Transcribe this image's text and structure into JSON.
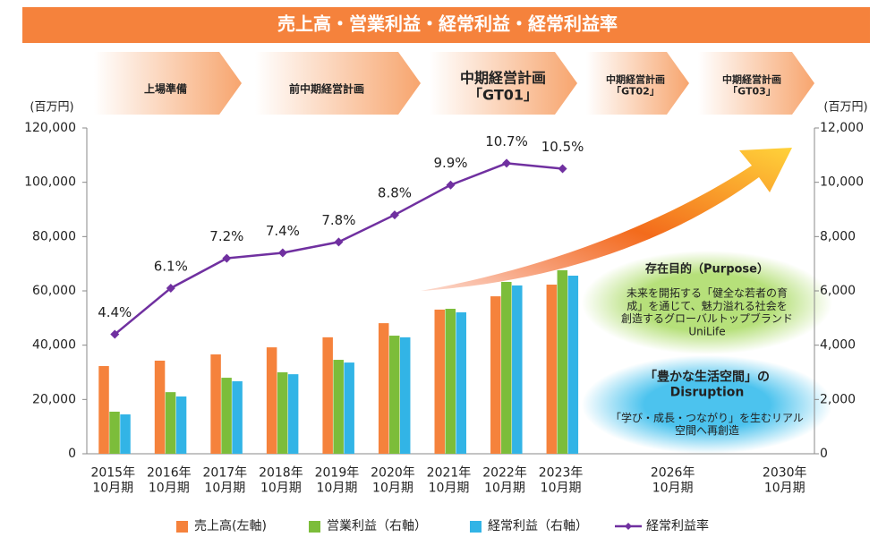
{
  "chart_data": {
    "type": "bar",
    "title": "売上高・営業利益・経常利益・経常利益率",
    "phases": [
      "上場準備",
      "前中期経営計画",
      "中期経営計画\n「GT01」",
      "中期経営計画\n「GT02」",
      "中期経営計画\n「GT03」"
    ],
    "y_label": "(百万円)",
    "y2_label": "(百万円)",
    "categories": [
      "2015年\n10月期",
      "2016年\n10月期",
      "2017年\n10月期",
      "2018年\n10月期",
      "2019年\n10月期",
      "2020年\n10月期",
      "2021年\n10月期",
      "2022年\n10月期",
      "2023年\n10月期",
      null,
      "2026年\n10月期",
      null,
      "2030年\n10月期"
    ],
    "ylim": [
      0,
      120000
    ],
    "yticks": [
      0,
      {
        "value": 20000,
        "label": "20,000"
      },
      {
        "value": 40000,
        "label": "40,000"
      },
      {
        "value": 60000,
        "label": "60,000"
      },
      {
        "value": 80000,
        "label": "80,000"
      },
      {
        "value": 100000,
        "label": "100,000"
      },
      {
        "value": 120000,
        "label": "120,000"
      }
    ],
    "y2lim": [
      0,
      12000
    ],
    "y2ticks": [
      0,
      {
        "value": 2000,
        "label": "2,000"
      },
      {
        "value": 4000,
        "label": "4,000"
      },
      {
        "value": 6000,
        "label": "6,000"
      },
      {
        "value": 8000,
        "label": "8,000"
      },
      {
        "value": 10000,
        "label": "10,000"
      },
      {
        "value": 12000,
        "label": "12,000"
      }
    ],
    "y3lim": [
      0,
      12
    ],
    "series": [
      {
        "name": "売上高(左軸)",
        "type": "bar",
        "color": "#f5823c",
        "axis": "y",
        "values": [
          32300,
          34300,
          36600,
          39200,
          42900,
          48100,
          53100,
          58000,
          62300,
          null,
          null,
          null,
          null
        ]
      },
      {
        "name": "営業利益（右軸）",
        "type": "bar",
        "color": "#7cbd3a",
        "axis": "y2",
        "values": [
          1550,
          2270,
          2800,
          3000,
          3460,
          4350,
          5340,
          6330,
          6760,
          null,
          null,
          null,
          null
        ]
      },
      {
        "name": "経常利益（右軸）",
        "type": "bar",
        "color": "#32b4e6",
        "axis": "y2",
        "values": [
          1450,
          2110,
          2670,
          2930,
          3360,
          4290,
          5210,
          6200,
          6560,
          null,
          null,
          null,
          null
        ]
      },
      {
        "name": "経常利益率",
        "type": "line",
        "color": "#7030a0",
        "axis": "y3",
        "values": [
          4.4,
          6.1,
          7.2,
          7.4,
          7.8,
          8.8,
          9.9,
          10.7,
          10.5,
          null,
          null,
          null,
          null
        ],
        "value_labels": [
          "4.4%",
          "6.1%",
          "7.2%",
          "7.4%",
          "7.8%",
          "8.8%",
          "9.9%",
          "10.7%",
          "10.5%",
          null,
          null,
          null,
          null
        ]
      }
    ],
    "annotations": [
      {
        "title": "存在目的（Purpose）",
        "text": "未来を開拓する「健全な若者の育\n成」を通じて、魅力溢れる社会を\n創造するグローバルトップブランド\nUniLife"
      },
      {
        "title": "「豊かな生活空間」の\nDisruption",
        "text": "「学び・成長・つながり」を生むリアル\n空間へ再創造"
      }
    ]
  }
}
